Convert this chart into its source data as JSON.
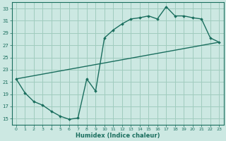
{
  "xlabel": "Humidex (Indice chaleur)",
  "bg_color": "#cce8e2",
  "grid_color": "#a0ccbe",
  "line_color": "#1a6e5e",
  "xlim": [
    -0.5,
    23.5
  ],
  "ylim": [
    14,
    34
  ],
  "xticks": [
    0,
    1,
    2,
    3,
    4,
    5,
    6,
    7,
    8,
    9,
    10,
    11,
    12,
    13,
    14,
    15,
    16,
    17,
    18,
    19,
    20,
    21,
    22,
    23
  ],
  "yticks": [
    15,
    17,
    19,
    21,
    23,
    25,
    27,
    29,
    31,
    33
  ],
  "curve1_x": [
    0,
    1,
    2,
    3,
    4,
    5,
    6,
    7,
    8,
    9,
    10,
    11,
    12,
    13,
    14,
    15,
    16,
    17,
    18,
    19,
    20,
    21,
    22,
    23
  ],
  "curve1_y": [
    21.5,
    19.2,
    17.8,
    17.2,
    16.2,
    15.4,
    14.9,
    15.1,
    21.5,
    19.5,
    28.2,
    29.5,
    30.5,
    31.3,
    31.5,
    31.8,
    31.3,
    33.3,
    31.8,
    31.8,
    31.5,
    31.3,
    28.2,
    27.5
  ]
}
